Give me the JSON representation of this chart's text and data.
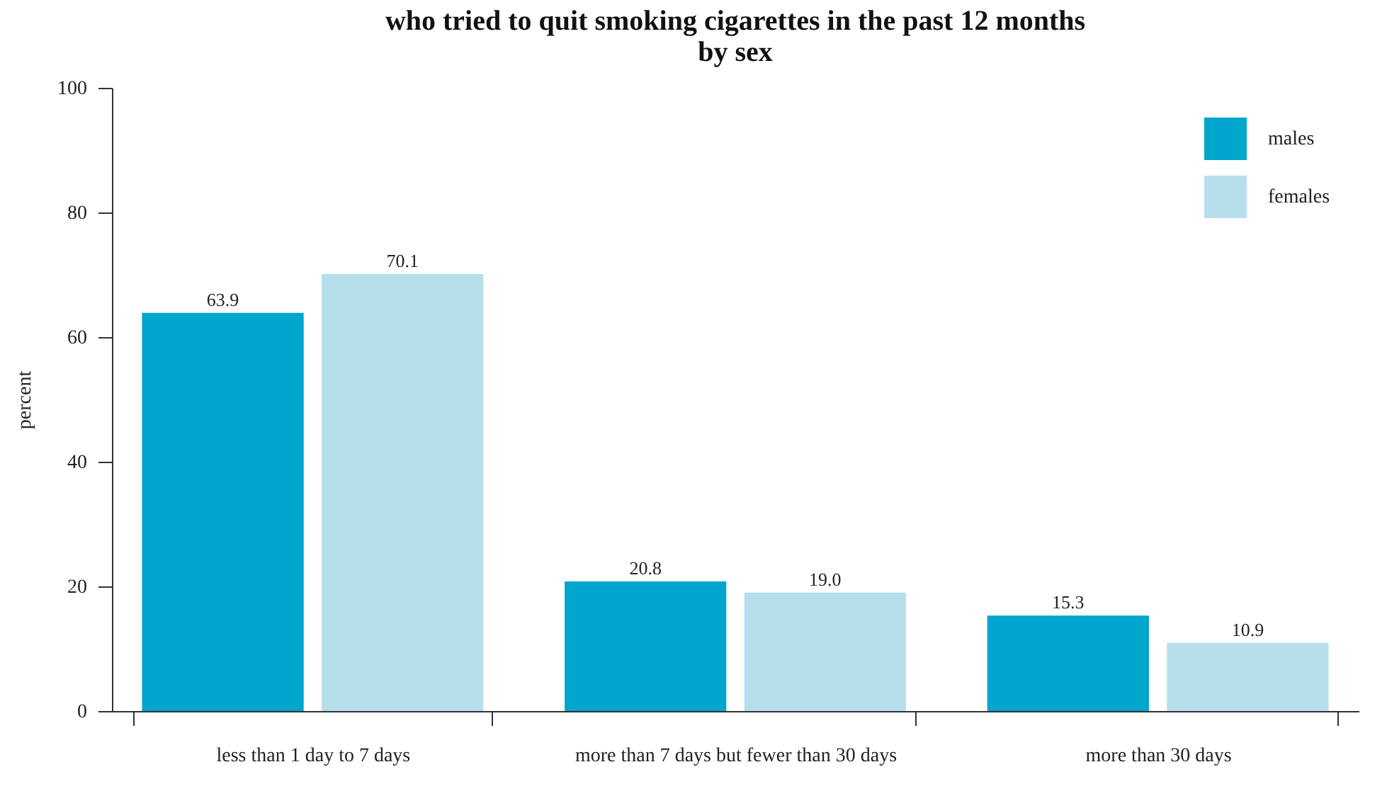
{
  "chart_data": {
    "type": "bar",
    "title": [
      "who tried to quit smoking cigarettes in the past 12 months",
      "by sex"
    ],
    "ylabel": "percent",
    "categories": [
      "less than 1 day to 7 days",
      "more than 7 days but fewer than 30 days",
      "more than 30 days"
    ],
    "series": [
      {
        "name": "males",
        "color": "#00a6cb",
        "values": [
          63.9,
          20.8,
          15.3
        ]
      },
      {
        "name": "females",
        "color": "#b6dfeb",
        "values": [
          70.1,
          19.0,
          10.9
        ]
      }
    ],
    "value_labels": [
      [
        "63.9",
        "20.8",
        "15.3"
      ],
      [
        "70.1",
        "19.0",
        "10.9"
      ]
    ],
    "ylim": [
      0,
      100
    ],
    "yticks": [
      0,
      20,
      40,
      60,
      80,
      100
    ],
    "grid": false,
    "legend": "top right"
  }
}
